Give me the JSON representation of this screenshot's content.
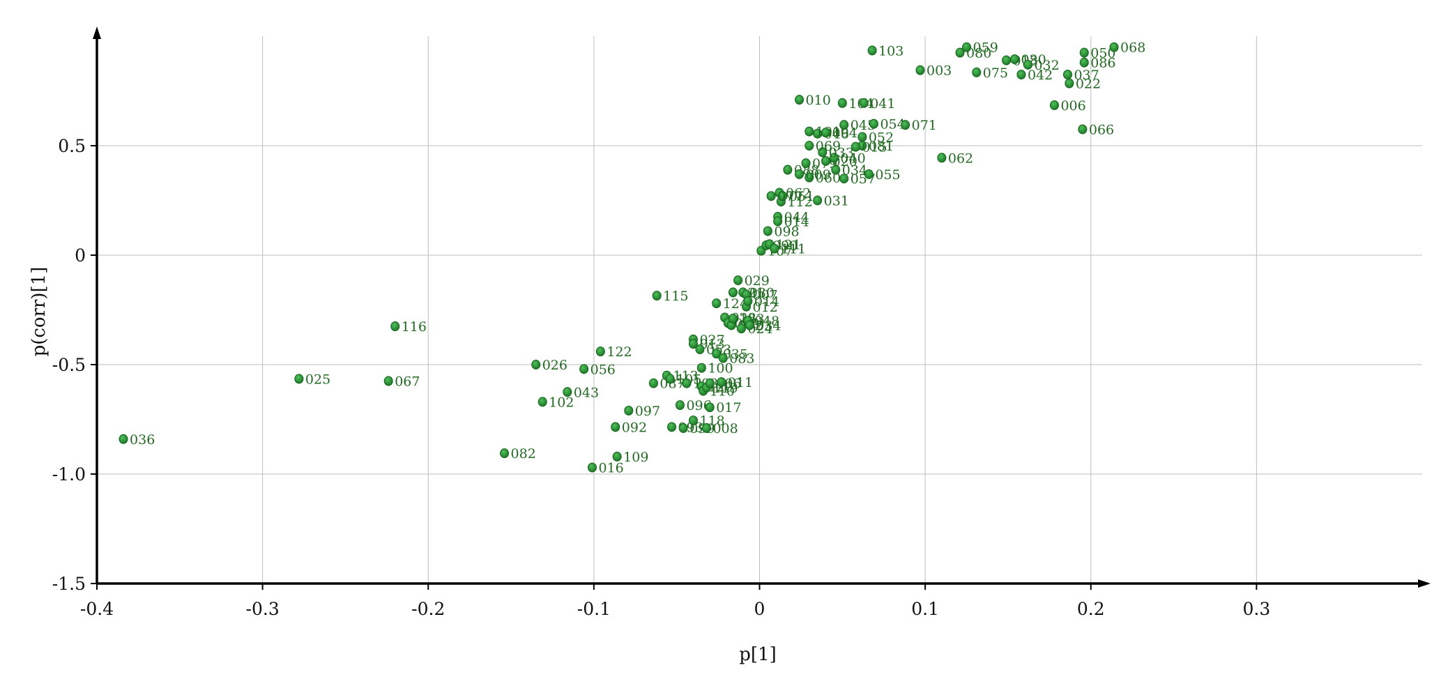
{
  "colors": {
    "point": "#1f8b2a",
    "point_stroke": "#14641b",
    "label": "#1f6b1f"
  },
  "chart_data": {
    "type": "scatter",
    "title": "",
    "xlabel": "p[1]",
    "ylabel": "p(corr)[1]",
    "xlim": [
      -0.4,
      0.4
    ],
    "ylim": [
      -1.5,
      1.0
    ],
    "grid": true,
    "x_ticks": [
      -0.4,
      -0.3,
      -0.2,
      -0.1,
      0,
      0.1,
      0.2,
      0.3
    ],
    "x_tick_labels": [
      "-0.4",
      "-0.3",
      "-0.2",
      "-0.1",
      "0",
      "0.1",
      "0.2",
      "0.3"
    ],
    "y_ticks": [
      0.5,
      0,
      -0.5,
      -1.0,
      -1.5
    ],
    "y_tick_labels": [
      "0.5",
      "0",
      "-0.5",
      "-1.0",
      "-1.5"
    ],
    "points": [
      {
        "label": "036",
        "x": -0.384,
        "y": -0.84
      },
      {
        "label": "025",
        "x": -0.278,
        "y": -0.565
      },
      {
        "label": "067",
        "x": -0.224,
        "y": -0.575
      },
      {
        "label": "116",
        "x": -0.22,
        "y": -0.325
      },
      {
        "label": "082",
        "x": -0.154,
        "y": -0.905
      },
      {
        "label": "026",
        "x": -0.135,
        "y": -0.5
      },
      {
        "label": "102",
        "x": -0.131,
        "y": -0.67
      },
      {
        "label": "043",
        "x": -0.116,
        "y": -0.625
      },
      {
        "label": "056",
        "x": -0.106,
        "y": -0.52
      },
      {
        "label": "016",
        "x": -0.101,
        "y": -0.97
      },
      {
        "label": "122",
        "x": -0.096,
        "y": -0.44
      },
      {
        "label": "092",
        "x": -0.087,
        "y": -0.785
      },
      {
        "label": "109",
        "x": -0.086,
        "y": -0.92
      },
      {
        "label": "097",
        "x": -0.079,
        "y": -0.71
      },
      {
        "label": "087",
        "x": -0.064,
        "y": -0.585
      },
      {
        "label": "115",
        "x": -0.062,
        "y": -0.185
      },
      {
        "label": "113",
        "x": -0.056,
        "y": -0.55
      },
      {
        "label": "105",
        "x": -0.054,
        "y": -0.565
      },
      {
        "label": "093",
        "x": -0.053,
        "y": -0.785
      },
      {
        "label": "096",
        "x": -0.048,
        "y": -0.685
      },
      {
        "label": "099",
        "x": -0.046,
        "y": -0.79
      },
      {
        "label": "108",
        "x": -0.044,
        "y": -0.585
      },
      {
        "label": "118",
        "x": -0.04,
        "y": -0.755
      },
      {
        "label": "027",
        "x": -0.04,
        "y": -0.385
      },
      {
        "label": "013",
        "x": -0.04,
        "y": -0.405
      },
      {
        "label": "053",
        "x": -0.036,
        "y": -0.43
      },
      {
        "label": "100",
        "x": -0.035,
        "y": -0.515
      },
      {
        "label": "120",
        "x": -0.035,
        "y": -0.6
      },
      {
        "label": "110",
        "x": -0.034,
        "y": -0.62
      },
      {
        "label": "119",
        "x": -0.032,
        "y": -0.605
      },
      {
        "label": "106",
        "x": -0.03,
        "y": -0.585
      },
      {
        "label": "017",
        "x": -0.03,
        "y": -0.695
      },
      {
        "label": "008",
        "x": -0.032,
        "y": -0.79
      },
      {
        "label": "035",
        "x": -0.026,
        "y": -0.45
      },
      {
        "label": "124",
        "x": -0.026,
        "y": -0.22
      },
      {
        "label": "083",
        "x": -0.022,
        "y": -0.47
      },
      {
        "label": "011",
        "x": -0.023,
        "y": -0.58
      },
      {
        "label": "028",
        "x": -0.021,
        "y": -0.285
      },
      {
        "label": "039",
        "x": -0.019,
        "y": -0.31
      },
      {
        "label": "072",
        "x": -0.017,
        "y": -0.32
      },
      {
        "label": "123",
        "x": -0.016,
        "y": -0.29
      },
      {
        "label": "021",
        "x": -0.016,
        "y": -0.17
      },
      {
        "label": "029",
        "x": -0.013,
        "y": -0.115
      },
      {
        "label": "024",
        "x": -0.011,
        "y": -0.335
      },
      {
        "label": "030",
        "x": -0.01,
        "y": -0.17
      },
      {
        "label": "007",
        "x": -0.008,
        "y": -0.18
      },
      {
        "label": "012",
        "x": -0.008,
        "y": -0.235
      },
      {
        "label": "014",
        "x": -0.007,
        "y": -0.21
      },
      {
        "label": "048",
        "x": -0.007,
        "y": -0.3
      },
      {
        "label": "034",
        "x": -0.006,
        "y": -0.32
      },
      {
        "label": "107",
        "x": 0.001,
        "y": 0.02
      },
      {
        "label": "090",
        "x": 0.004,
        "y": 0.045
      },
      {
        "label": "121",
        "x": 0.006,
        "y": 0.05
      },
      {
        "label": "111",
        "x": 0.009,
        "y": 0.03
      },
      {
        "label": "098",
        "x": 0.005,
        "y": 0.11
      },
      {
        "label": "044",
        "x": 0.011,
        "y": 0.175
      },
      {
        "label": "014b",
        "x": 0.011,
        "y": 0.155
      },
      {
        "label": "112",
        "x": 0.013,
        "y": 0.245
      },
      {
        "label": "062b",
        "x": 0.012,
        "y": 0.285
      },
      {
        "label": "051",
        "x": 0.014,
        "y": 0.27
      },
      {
        "label": "031",
        "x": 0.035,
        "y": 0.25
      },
      {
        "label": "077",
        "x": 0.007,
        "y": 0.27
      },
      {
        "label": "088",
        "x": 0.017,
        "y": 0.39
      },
      {
        "label": "060",
        "x": 0.03,
        "y": 0.355
      },
      {
        "label": "009",
        "x": 0.024,
        "y": 0.37
      },
      {
        "label": "079",
        "x": 0.028,
        "y": 0.42
      },
      {
        "label": "057",
        "x": 0.051,
        "y": 0.35
      },
      {
        "label": "055",
        "x": 0.066,
        "y": 0.37
      },
      {
        "label": "034b",
        "x": 0.046,
        "y": 0.39
      },
      {
        "label": "020",
        "x": 0.04,
        "y": 0.43
      },
      {
        "label": "040",
        "x": 0.045,
        "y": 0.445
      },
      {
        "label": "033",
        "x": 0.038,
        "y": 0.47
      },
      {
        "label": "069",
        "x": 0.03,
        "y": 0.5
      },
      {
        "label": "081",
        "x": 0.062,
        "y": 0.5
      },
      {
        "label": "015",
        "x": 0.058,
        "y": 0.495
      },
      {
        "label": "052",
        "x": 0.062,
        "y": 0.54
      },
      {
        "label": "046",
        "x": 0.035,
        "y": 0.555
      },
      {
        "label": "101",
        "x": 0.03,
        "y": 0.565
      },
      {
        "label": "094",
        "x": 0.04,
        "y": 0.56
      },
      {
        "label": "045",
        "x": 0.051,
        "y": 0.595
      },
      {
        "label": "054",
        "x": 0.069,
        "y": 0.6
      },
      {
        "label": "071",
        "x": 0.088,
        "y": 0.595
      },
      {
        "label": "010",
        "x": 0.024,
        "y": 0.71
      },
      {
        "label": "104",
        "x": 0.05,
        "y": 0.695
      },
      {
        "label": "041",
        "x": 0.063,
        "y": 0.695
      },
      {
        "label": "062",
        "x": 0.11,
        "y": 0.445
      },
      {
        "label": "103",
        "x": 0.068,
        "y": 0.935
      },
      {
        "label": "003",
        "x": 0.097,
        "y": 0.845
      },
      {
        "label": "080",
        "x": 0.121,
        "y": 0.925
      },
      {
        "label": "059",
        "x": 0.125,
        "y": 0.95
      },
      {
        "label": "075",
        "x": 0.131,
        "y": 0.835
      },
      {
        "label": "018",
        "x": 0.149,
        "y": 0.89
      },
      {
        "label": "030b",
        "x": 0.154,
        "y": 0.895
      },
      {
        "label": "032",
        "x": 0.162,
        "y": 0.87
      },
      {
        "label": "042",
        "x": 0.158,
        "y": 0.825
      },
      {
        "label": "037",
        "x": 0.186,
        "y": 0.825
      },
      {
        "label": "022",
        "x": 0.187,
        "y": 0.785
      },
      {
        "label": "006",
        "x": 0.178,
        "y": 0.685
      },
      {
        "label": "050",
        "x": 0.196,
        "y": 0.925
      },
      {
        "label": "086",
        "x": 0.196,
        "y": 0.88
      },
      {
        "label": "068",
        "x": 0.214,
        "y": 0.95
      },
      {
        "label": "066",
        "x": 0.195,
        "y": 0.575
      }
    ]
  }
}
